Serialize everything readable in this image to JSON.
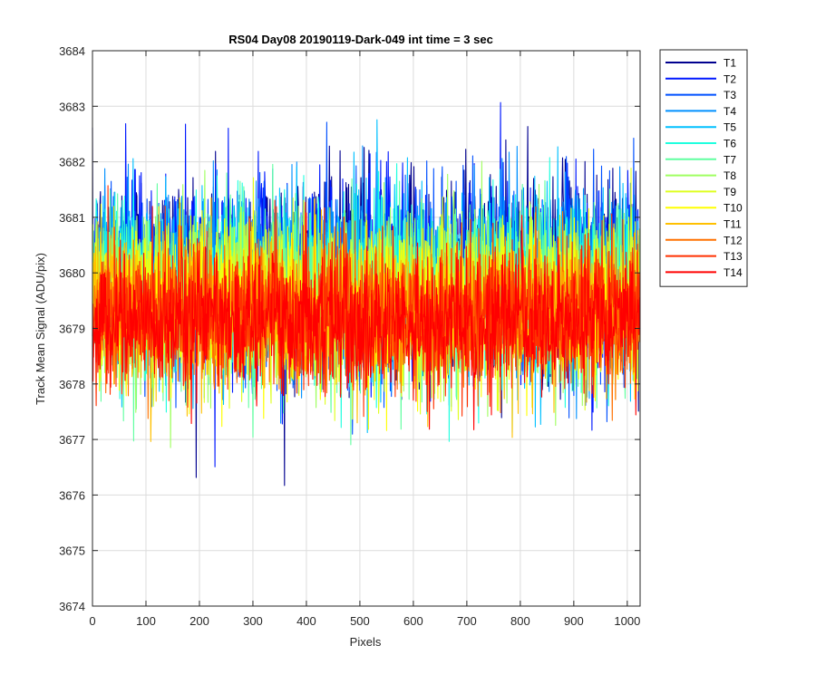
{
  "chart_data": {
    "type": "line",
    "title": "RS04 Day08 20190119-Dark-049 int time = 3 sec",
    "xlabel": "Pixels",
    "ylabel": "Track Mean Signal (ADU/pix)",
    "xlim": [
      0,
      1024
    ],
    "ylim": [
      3674,
      3684
    ],
    "xticks": [
      0,
      100,
      200,
      300,
      400,
      500,
      600,
      700,
      800,
      900,
      1000
    ],
    "yticks": [
      3674,
      3675,
      3676,
      3677,
      3678,
      3679,
      3680,
      3681,
      3682,
      3683,
      3684
    ],
    "grid": true,
    "legend_location": "outside-top-right",
    "series_count": 14,
    "points_per_series": 1024,
    "noise_band": {
      "mean": 3679.5,
      "typical_range": [
        3677.5,
        3682
      ],
      "extremes": [
        3675,
        3683.9
      ]
    },
    "series": [
      {
        "name": "T1",
        "color": "#00008f"
      },
      {
        "name": "T2",
        "color": "#0018ff"
      },
      {
        "name": "T3",
        "color": "#0050ff"
      },
      {
        "name": "T4",
        "color": "#0090ff"
      },
      {
        "name": "T5",
        "color": "#00c0ff"
      },
      {
        "name": "T6",
        "color": "#20ffdf"
      },
      {
        "name": "T7",
        "color": "#60ffa0"
      },
      {
        "name": "T8",
        "color": "#9fff60"
      },
      {
        "name": "T9",
        "color": "#dfff20"
      },
      {
        "name": "T10",
        "color": "#ffff00"
      },
      {
        "name": "T11",
        "color": "#ffc000"
      },
      {
        "name": "T12",
        "color": "#ff7000"
      },
      {
        "name": "T13",
        "color": "#ff3000"
      },
      {
        "name": "T14",
        "color": "#ff0000"
      }
    ],
    "tick_labels": {
      "x": [
        "0",
        "100",
        "200",
        "300",
        "400",
        "500",
        "600",
        "700",
        "800",
        "900",
        "1000"
      ],
      "y": [
        "3674",
        "3675",
        "3676",
        "3677",
        "3678",
        "3679",
        "3680",
        "3681",
        "3682",
        "3683",
        "3684"
      ]
    }
  }
}
